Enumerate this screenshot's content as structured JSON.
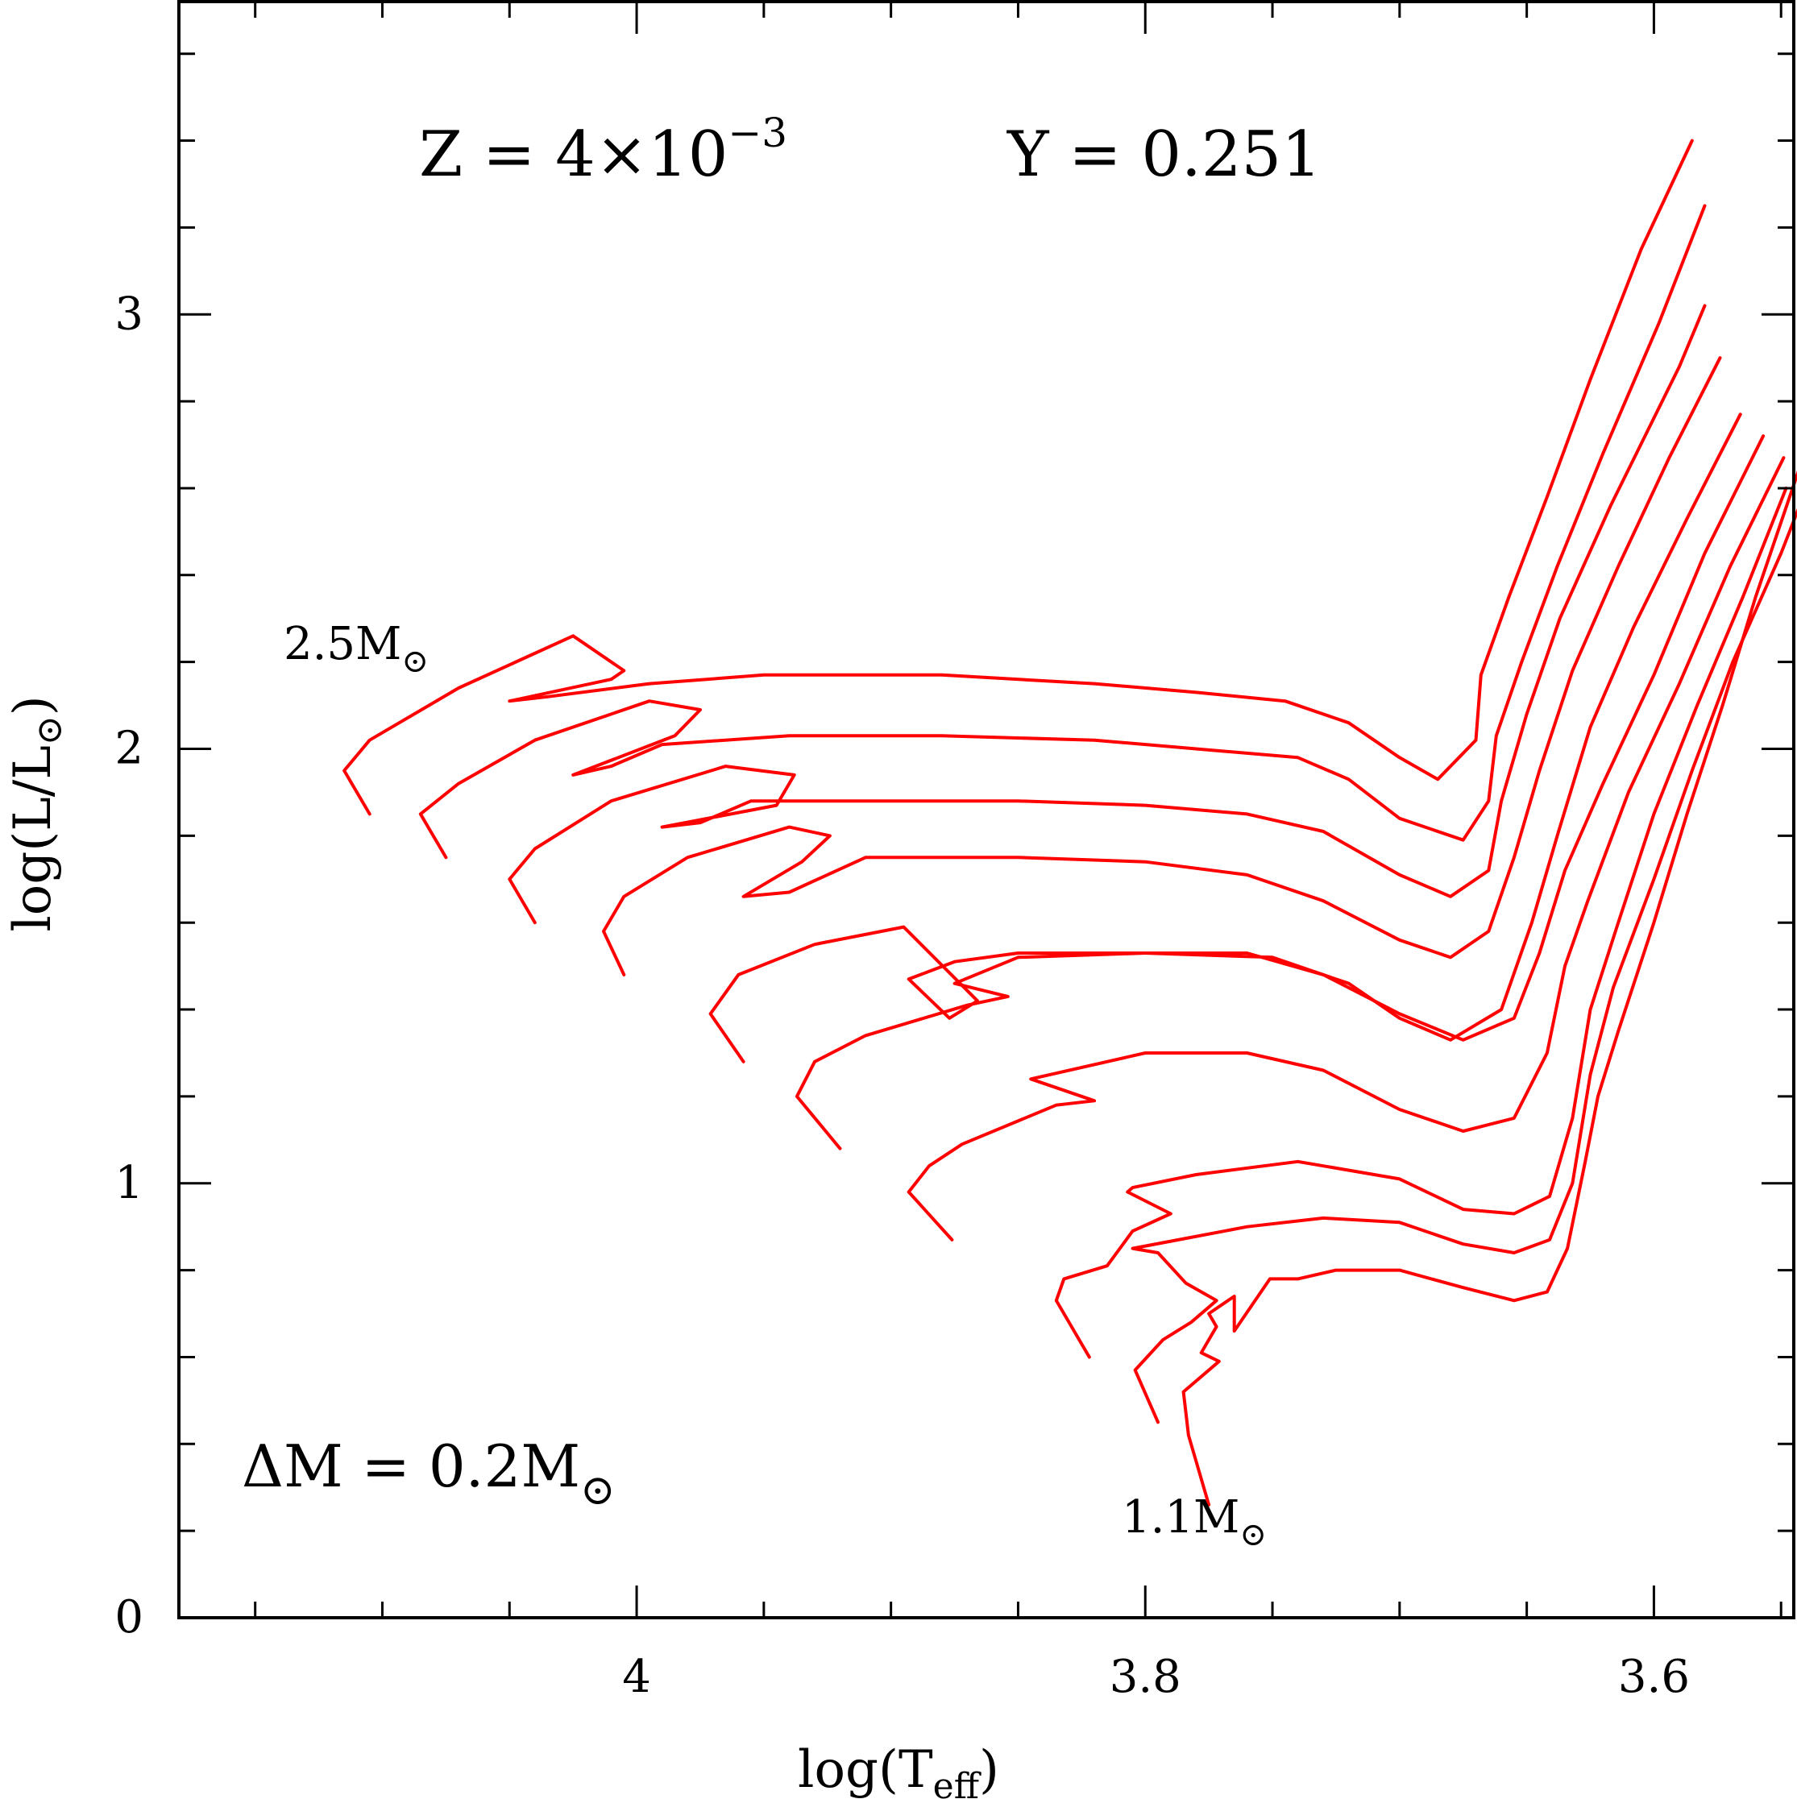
{
  "chart_data": {
    "type": "line",
    "title": "",
    "xlabel": "log(T_eff)",
    "ylabel": "log(L/L⊙)",
    "xlim": [
      4.18,
      3.545
    ],
    "ylim": [
      0,
      3.72
    ],
    "x_reversed": true,
    "x_ticks": [
      4,
      3.8,
      3.6
    ],
    "y_ticks": [
      0,
      1,
      2,
      3
    ],
    "x_minor_step": 0.05,
    "y_minor_step": 0.2,
    "grid": false,
    "line_color": "#ff0000",
    "annotations": {
      "z_prefix": "Z = 4×10",
      "z_exp": "−3",
      "y_text": "Y = 0.251",
      "dm_text": "ΔM = 0.2M",
      "top_mass": "2.5M",
      "bottom_mass": "1.1M",
      "sun": "⊙"
    },
    "series": [
      {
        "values": [
          [
            3.775,
            0.26
          ],
          [
            3.783,
            0.42
          ],
          [
            3.785,
            0.52
          ],
          [
            3.771,
            0.59
          ],
          [
            3.778,
            0.61
          ],
          [
            3.772,
            0.67
          ],
          [
            3.775,
            0.7
          ],
          [
            3.765,
            0.74
          ],
          [
            3.765,
            0.66
          ],
          [
            3.751,
            0.78
          ],
          [
            3.74,
            0.78
          ],
          [
            3.725,
            0.8
          ],
          [
            3.7,
            0.8
          ],
          [
            3.675,
            0.76
          ],
          [
            3.655,
            0.73
          ],
          [
            3.642,
            0.75
          ],
          [
            3.634,
            0.85
          ],
          [
            3.627,
            1.05
          ],
          [
            3.622,
            1.2
          ],
          [
            3.614,
            1.35
          ],
          [
            3.6,
            1.6
          ],
          [
            3.587,
            1.85
          ],
          [
            3.573,
            2.1
          ],
          [
            3.56,
            2.35
          ],
          [
            3.535,
            2.78
          ]
        ]
      },
      {
        "values": [
          [
            3.795,
            0.45
          ],
          [
            3.804,
            0.57
          ],
          [
            3.793,
            0.64
          ],
          [
            3.782,
            0.68
          ],
          [
            3.772,
            0.73
          ],
          [
            3.784,
            0.77
          ],
          [
            3.795,
            0.84
          ],
          [
            3.805,
            0.85
          ],
          [
            3.787,
            0.87
          ],
          [
            3.76,
            0.9
          ],
          [
            3.73,
            0.92
          ],
          [
            3.7,
            0.91
          ],
          [
            3.675,
            0.86
          ],
          [
            3.655,
            0.84
          ],
          [
            3.641,
            0.87
          ],
          [
            3.632,
            1.0
          ],
          [
            3.625,
            1.25
          ],
          [
            3.616,
            1.45
          ],
          [
            3.6,
            1.7
          ],
          [
            3.585,
            1.95
          ],
          [
            3.569,
            2.2
          ],
          [
            3.55,
            2.45
          ],
          [
            3.54,
            2.6
          ]
        ]
      },
      {
        "values": [
          [
            3.822,
            0.6
          ],
          [
            3.835,
            0.73
          ],
          [
            3.832,
            0.78
          ],
          [
            3.815,
            0.81
          ],
          [
            3.805,
            0.89
          ],
          [
            3.79,
            0.93
          ],
          [
            3.807,
            0.98
          ],
          [
            3.805,
            0.99
          ],
          [
            3.78,
            1.02
          ],
          [
            3.74,
            1.05
          ],
          [
            3.7,
            1.01
          ],
          [
            3.675,
            0.94
          ],
          [
            3.655,
            0.93
          ],
          [
            3.641,
            0.97
          ],
          [
            3.632,
            1.15
          ],
          [
            3.625,
            1.4
          ],
          [
            3.614,
            1.6
          ],
          [
            3.6,
            1.85
          ],
          [
            3.583,
            2.1
          ],
          [
            3.565,
            2.35
          ],
          [
            3.548,
            2.6
          ]
        ]
      },
      {
        "values": [
          [
            3.876,
            0.87
          ],
          [
            3.893,
            0.98
          ],
          [
            3.885,
            1.04
          ],
          [
            3.872,
            1.09
          ],
          [
            3.835,
            1.18
          ],
          [
            3.82,
            1.19
          ],
          [
            3.845,
            1.24
          ],
          [
            3.8,
            1.3
          ],
          [
            3.76,
            1.3
          ],
          [
            3.73,
            1.26
          ],
          [
            3.7,
            1.17
          ],
          [
            3.675,
            1.12
          ],
          [
            3.655,
            1.15
          ],
          [
            3.642,
            1.3
          ],
          [
            3.635,
            1.5
          ],
          [
            3.626,
            1.65
          ],
          [
            3.61,
            1.9
          ],
          [
            3.59,
            2.15
          ],
          [
            3.57,
            2.42
          ],
          [
            3.549,
            2.67
          ]
        ]
      },
      {
        "values": [
          [
            3.92,
            1.08
          ],
          [
            3.937,
            1.2
          ],
          [
            3.93,
            1.28
          ],
          [
            3.91,
            1.34
          ],
          [
            3.87,
            1.41
          ],
          [
            3.854,
            1.43
          ],
          [
            3.875,
            1.46
          ],
          [
            3.85,
            1.52
          ],
          [
            3.8,
            1.53
          ],
          [
            3.76,
            1.53
          ],
          [
            3.73,
            1.48
          ],
          [
            3.7,
            1.39
          ],
          [
            3.675,
            1.33
          ],
          [
            3.655,
            1.38
          ],
          [
            3.645,
            1.53
          ],
          [
            3.635,
            1.72
          ],
          [
            3.62,
            1.92
          ],
          [
            3.6,
            2.17
          ],
          [
            3.58,
            2.45
          ],
          [
            3.557,
            2.72
          ]
        ]
      },
      {
        "values": [
          [
            3.958,
            1.28
          ],
          [
            3.971,
            1.39
          ],
          [
            3.96,
            1.48
          ],
          [
            3.93,
            1.55
          ],
          [
            3.895,
            1.59
          ],
          [
            3.866,
            1.42
          ],
          [
            3.877,
            1.38
          ],
          [
            3.893,
            1.47
          ],
          [
            3.875,
            1.51
          ],
          [
            3.85,
            1.53
          ],
          [
            3.8,
            1.53
          ],
          [
            3.75,
            1.52
          ],
          [
            3.72,
            1.46
          ],
          [
            3.7,
            1.38
          ],
          [
            3.68,
            1.33
          ],
          [
            3.66,
            1.4
          ],
          [
            3.648,
            1.6
          ],
          [
            3.638,
            1.8
          ],
          [
            3.625,
            2.05
          ],
          [
            3.608,
            2.28
          ],
          [
            3.587,
            2.53
          ],
          [
            3.566,
            2.77
          ]
        ]
      },
      {
        "values": [
          [
            4.005,
            1.48
          ],
          [
            4.013,
            1.58
          ],
          [
            4.005,
            1.66
          ],
          [
            3.98,
            1.75
          ],
          [
            3.94,
            1.82
          ],
          [
            3.924,
            1.8
          ],
          [
            3.935,
            1.74
          ],
          [
            3.958,
            1.66
          ],
          [
            3.94,
            1.67
          ],
          [
            3.91,
            1.75
          ],
          [
            3.85,
            1.75
          ],
          [
            3.8,
            1.74
          ],
          [
            3.76,
            1.71
          ],
          [
            3.73,
            1.65
          ],
          [
            3.7,
            1.56
          ],
          [
            3.68,
            1.52
          ],
          [
            3.665,
            1.58
          ],
          [
            3.655,
            1.75
          ],
          [
            3.645,
            1.95
          ],
          [
            3.632,
            2.18
          ],
          [
            3.614,
            2.42
          ],
          [
            3.594,
            2.67
          ],
          [
            3.574,
            2.9
          ]
        ]
      },
      {
        "values": [
          [
            4.04,
            1.6
          ],
          [
            4.05,
            1.7
          ],
          [
            4.04,
            1.77
          ],
          [
            4.01,
            1.88
          ],
          [
            3.965,
            1.96
          ],
          [
            3.938,
            1.94
          ],
          [
            3.945,
            1.87
          ],
          [
            3.99,
            1.82
          ],
          [
            3.975,
            1.83
          ],
          [
            3.955,
            1.88
          ],
          [
            3.9,
            1.88
          ],
          [
            3.85,
            1.88
          ],
          [
            3.8,
            1.87
          ],
          [
            3.76,
            1.85
          ],
          [
            3.73,
            1.81
          ],
          [
            3.7,
            1.71
          ],
          [
            3.68,
            1.66
          ],
          [
            3.665,
            1.72
          ],
          [
            3.66,
            1.88
          ],
          [
            3.65,
            2.08
          ],
          [
            3.637,
            2.3
          ],
          [
            3.617,
            2.56
          ],
          [
            3.59,
            2.88
          ],
          [
            3.58,
            3.02
          ]
        ]
      },
      {
        "values": [
          [
            4.075,
            1.75
          ],
          [
            4.085,
            1.85
          ],
          [
            4.07,
            1.92
          ],
          [
            4.04,
            2.02
          ],
          [
            3.995,
            2.11
          ],
          [
            3.975,
            2.09
          ],
          [
            3.985,
            2.03
          ],
          [
            4.025,
            1.94
          ],
          [
            4.01,
            1.96
          ],
          [
            3.99,
            2.01
          ],
          [
            3.94,
            2.03
          ],
          [
            3.88,
            2.03
          ],
          [
            3.82,
            2.02
          ],
          [
            3.78,
            2.0
          ],
          [
            3.74,
            1.98
          ],
          [
            3.72,
            1.93
          ],
          [
            3.7,
            1.84
          ],
          [
            3.675,
            1.79
          ],
          [
            3.665,
            1.88
          ],
          [
            3.662,
            2.03
          ],
          [
            3.652,
            2.2
          ],
          [
            3.638,
            2.42
          ],
          [
            3.62,
            2.68
          ],
          [
            3.598,
            2.98
          ],
          [
            3.58,
            3.25
          ]
        ]
      },
      {
        "values": [
          [
            4.105,
            1.85
          ],
          [
            4.115,
            1.95
          ],
          [
            4.105,
            2.02
          ],
          [
            4.07,
            2.14
          ],
          [
            4.025,
            2.26
          ],
          [
            4.005,
            2.18
          ],
          [
            4.01,
            2.16
          ],
          [
            4.05,
            2.11
          ],
          [
            4.035,
            2.12
          ],
          [
            3.995,
            2.15
          ],
          [
            3.95,
            2.17
          ],
          [
            3.88,
            2.17
          ],
          [
            3.82,
            2.15
          ],
          [
            3.78,
            2.13
          ],
          [
            3.745,
            2.11
          ],
          [
            3.72,
            2.06
          ],
          [
            3.7,
            1.98
          ],
          [
            3.685,
            1.93
          ],
          [
            3.67,
            2.02
          ],
          [
            3.668,
            2.17
          ],
          [
            3.657,
            2.35
          ],
          [
            3.642,
            2.58
          ],
          [
            3.625,
            2.85
          ],
          [
            3.605,
            3.15
          ],
          [
            3.585,
            3.4
          ]
        ]
      }
    ]
  }
}
